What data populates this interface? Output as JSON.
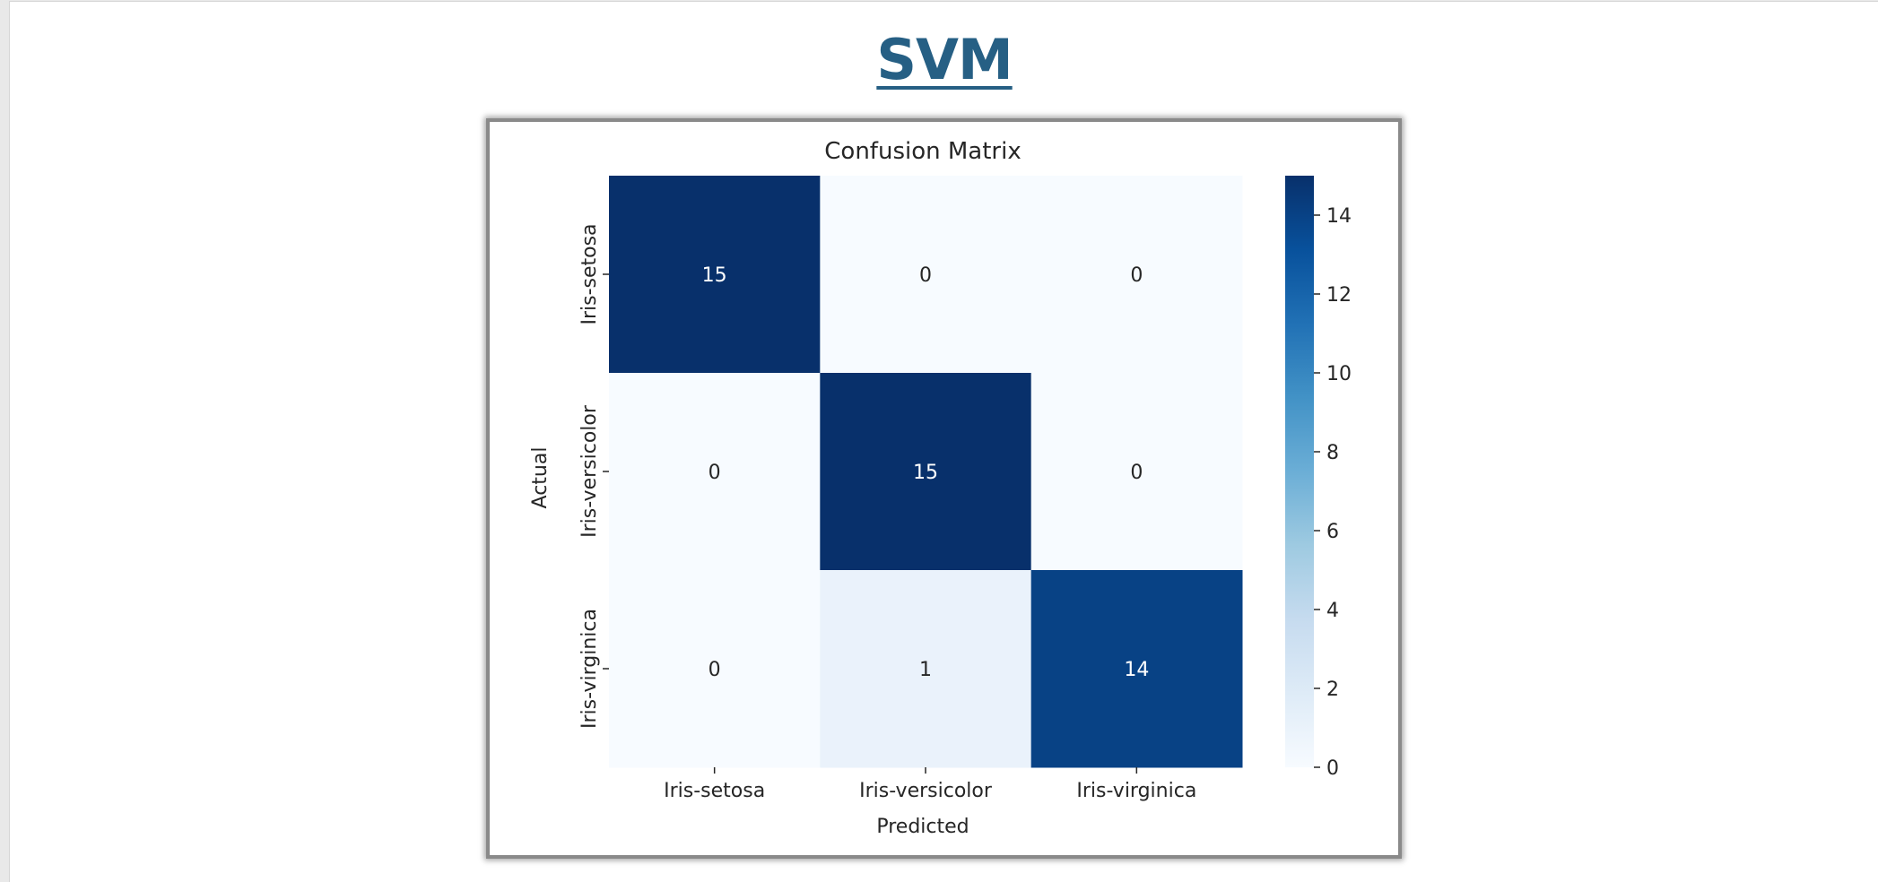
{
  "page": {
    "title": "SVM"
  },
  "chart_data": {
    "type": "heatmap",
    "title": "Confusion Matrix",
    "xlabel": "Predicted",
    "ylabel": "Actual",
    "x_categories": [
      "Iris-setosa",
      "Iris-versicolor",
      "Iris-virginica"
    ],
    "y_categories": [
      "Iris-setosa",
      "Iris-versicolor",
      "Iris-virginica"
    ],
    "values": [
      [
        15,
        0,
        0
      ],
      [
        0,
        15,
        0
      ],
      [
        0,
        1,
        14
      ]
    ],
    "colormap": "Blues",
    "color_range": [
      0,
      15
    ],
    "colorbar_ticks": [
      0,
      2,
      4,
      6,
      8,
      10,
      12,
      14
    ],
    "annotations": true,
    "grid": false,
    "colors": {
      "low": "#f7fbff",
      "high": "#08306b",
      "text_dark": "#262626",
      "text_light": "#ffffff"
    }
  }
}
